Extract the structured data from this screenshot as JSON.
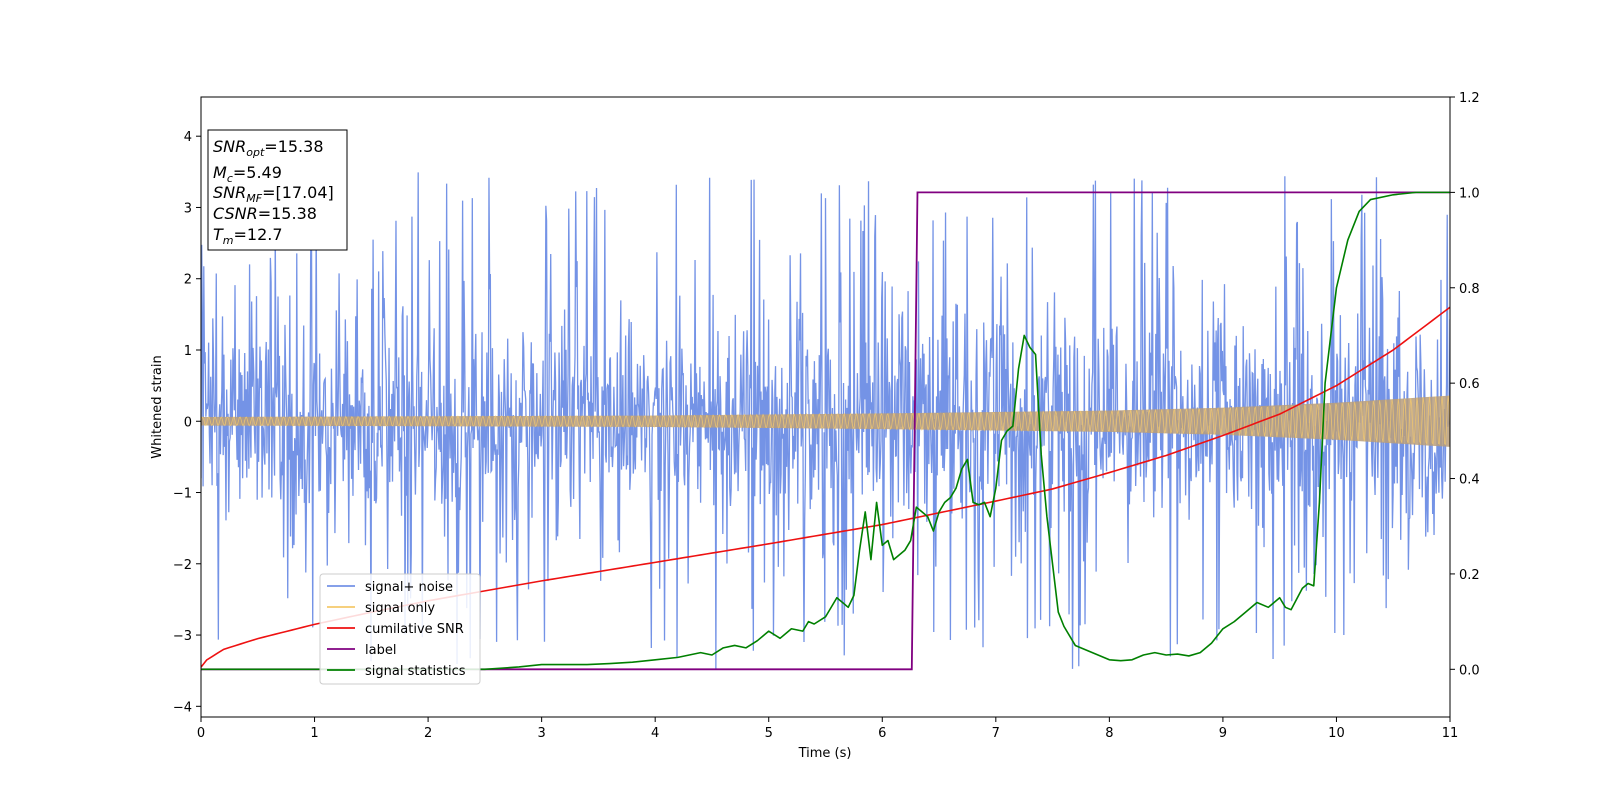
{
  "chart_data": {
    "type": "line",
    "xlabel": "Time (s)",
    "ylabel": "Whitened strain",
    "xlim": [
      0,
      11
    ],
    "ylim_left": [
      -4.15,
      4.55
    ],
    "ylim_right": [
      -0.1,
      1.2
    ],
    "x_ticks": [
      "0",
      "1",
      "2",
      "3",
      "4",
      "5",
      "6",
      "7",
      "8",
      "9",
      "10",
      "11"
    ],
    "y_ticks_left": [
      "−4",
      "−3",
      "−2",
      "−1",
      "0",
      "1",
      "2",
      "3",
      "4"
    ],
    "y_ticks_right": [
      "0.0",
      "0.2",
      "0.4",
      "0.6",
      "0.8",
      "1.0",
      "1.2"
    ],
    "colors": {
      "signal_noise": "#7493e6",
      "signal_only": "#f5c96b",
      "signal_overlap": "#b89d7a",
      "cumulative_snr": "#ee1111",
      "label": "#800080",
      "signal_statistics": "#008000"
    },
    "legend": {
      "position": "lower-left",
      "entries": [
        {
          "key": "signal_noise",
          "label": "signal+ noise",
          "color": "#7493e6"
        },
        {
          "key": "signal_only",
          "label": "signal only",
          "color": "#f5c96b"
        },
        {
          "key": "cumulative_snr",
          "label": "cumilative SNR",
          "color": "#ee1111"
        },
        {
          "key": "label",
          "label": "label",
          "color": "#800080"
        },
        {
          "key": "signal_statistics",
          "label": "signal statistics",
          "color": "#008000"
        }
      ]
    },
    "annotation": {
      "lines": [
        {
          "base": "SNR",
          "sub": "opt",
          "value": "=15.38"
        },
        {
          "base": "M",
          "sub": "c",
          "value": "=5.49"
        },
        {
          "base": "SNR",
          "sub": "MF",
          "value": "=[17.04]"
        },
        {
          "base": "CSNR",
          "sub": "",
          "value": "=15.38"
        },
        {
          "base": "T",
          "sub": "m",
          "value": "=12.7"
        }
      ]
    },
    "series": [
      {
        "name": "signal+ noise",
        "axis": "left",
        "kind": "noise-band",
        "x_range": [
          0,
          11
        ],
        "band_core": [
          -1.3,
          1.3
        ],
        "spike_range": [
          -3.7,
          3.75
        ]
      },
      {
        "name": "signal only",
        "axis": "left",
        "kind": "chirp-envelope",
        "amplitude_x": [
          0,
          2,
          4,
          6,
          8,
          9,
          10,
          11
        ],
        "amplitude_y": [
          0.06,
          0.07,
          0.08,
          0.11,
          0.15,
          0.19,
          0.26,
          0.36
        ]
      },
      {
        "name": "cumilative SNR",
        "axis": "left",
        "x": [
          0,
          0.05,
          0.2,
          0.5,
          1,
          1.5,
          2,
          3,
          4,
          5,
          6,
          7,
          7.5,
          8,
          8.5,
          9,
          9.5,
          10,
          10.5,
          11
        ],
        "y": [
          -3.45,
          -3.35,
          -3.2,
          -3.05,
          -2.85,
          -2.68,
          -2.52,
          -2.24,
          -1.98,
          -1.72,
          -1.45,
          -1.12,
          -0.95,
          -0.72,
          -0.48,
          -0.2,
          0.1,
          0.5,
          1.0,
          1.6
        ]
      },
      {
        "name": "label",
        "axis": "right",
        "x": [
          0,
          6.26,
          6.31,
          11
        ],
        "y": [
          0,
          0,
          1.0,
          1.0
        ]
      },
      {
        "name": "signal statistics",
        "axis": "right",
        "x": [
          0,
          2.5,
          2.8,
          3.0,
          3.2,
          3.4,
          3.6,
          3.8,
          4.0,
          4.2,
          4.4,
          4.5,
          4.6,
          4.7,
          4.8,
          4.9,
          5.0,
          5.1,
          5.2,
          5.3,
          5.35,
          5.4,
          5.5,
          5.6,
          5.7,
          5.75,
          5.8,
          5.85,
          5.9,
          5.95,
          6.0,
          6.05,
          6.1,
          6.2,
          6.25,
          6.3,
          6.35,
          6.4,
          6.45,
          6.5,
          6.55,
          6.6,
          6.65,
          6.7,
          6.75,
          6.8,
          6.85,
          6.9,
          6.95,
          7.0,
          7.05,
          7.1,
          7.15,
          7.2,
          7.25,
          7.3,
          7.35,
          7.4,
          7.45,
          7.5,
          7.55,
          7.6,
          7.7,
          7.8,
          7.9,
          8.0,
          8.1,
          8.2,
          8.3,
          8.4,
          8.5,
          8.6,
          8.7,
          8.8,
          8.9,
          9.0,
          9.1,
          9.2,
          9.3,
          9.4,
          9.5,
          9.55,
          9.6,
          9.7,
          9.75,
          9.8,
          9.85,
          9.9,
          10.0,
          10.1,
          10.2,
          10.3,
          10.5,
          10.7,
          11
        ],
        "y": [
          0,
          0,
          0.005,
          0.01,
          0.01,
          0.01,
          0.012,
          0.015,
          0.02,
          0.025,
          0.035,
          0.03,
          0.045,
          0.05,
          0.045,
          0.06,
          0.08,
          0.065,
          0.085,
          0.08,
          0.1,
          0.095,
          0.11,
          0.15,
          0.13,
          0.155,
          0.25,
          0.33,
          0.23,
          0.35,
          0.26,
          0.27,
          0.23,
          0.25,
          0.27,
          0.34,
          0.33,
          0.32,
          0.29,
          0.33,
          0.35,
          0.36,
          0.38,
          0.42,
          0.44,
          0.35,
          0.345,
          0.35,
          0.32,
          0.38,
          0.48,
          0.5,
          0.51,
          0.63,
          0.7,
          0.675,
          0.66,
          0.45,
          0.32,
          0.22,
          0.12,
          0.09,
          0.05,
          0.04,
          0.03,
          0.02,
          0.018,
          0.02,
          0.03,
          0.035,
          0.03,
          0.032,
          0.028,
          0.035,
          0.055,
          0.085,
          0.1,
          0.12,
          0.14,
          0.13,
          0.15,
          0.13,
          0.125,
          0.17,
          0.18,
          0.175,
          0.35,
          0.6,
          0.8,
          0.9,
          0.96,
          0.985,
          0.995,
          1.0,
          1.0
        ]
      }
    ]
  }
}
